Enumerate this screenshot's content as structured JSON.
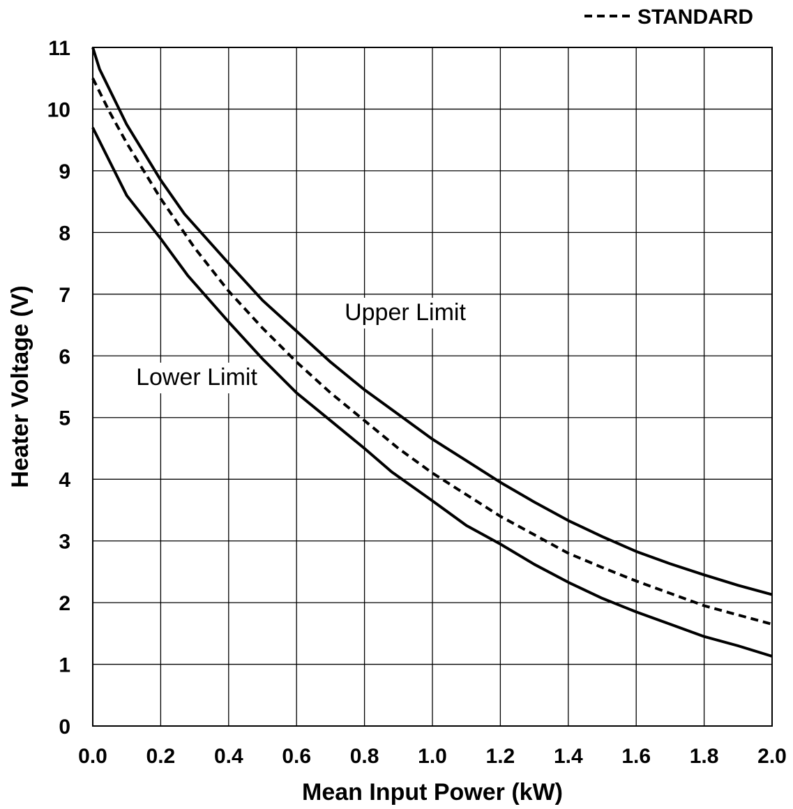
{
  "chart_data": {
    "type": "line",
    "title": "",
    "xlabel": "Mean Input Power (kW)",
    "ylabel": "Heater Voltage (V)",
    "xlim": [
      0,
      2.0
    ],
    "ylim": [
      0,
      11
    ],
    "x_ticks": [
      "0.0",
      "0.2",
      "0.4",
      "0.6",
      "0.8",
      "1.0",
      "1.2",
      "1.4",
      "1.6",
      "1.8",
      "2.0"
    ],
    "y_ticks": [
      "0",
      "1",
      "2",
      "3",
      "4",
      "5",
      "6",
      "7",
      "8",
      "9",
      "10",
      "11"
    ],
    "grid": true,
    "legend": {
      "placement": "top-right",
      "entries": [
        "STANDARD"
      ]
    },
    "annotations": [
      "Upper Limit",
      "Lower Limit"
    ],
    "series": [
      {
        "name": "Upper Limit",
        "style": "solid",
        "x": [
          0.0,
          0.02,
          0.1,
          0.2,
          0.27,
          0.4,
          0.5,
          0.6,
          0.7,
          0.8,
          0.9,
          1.0,
          1.1,
          1.2,
          1.3,
          1.4,
          1.5,
          1.6,
          1.7,
          1.8,
          1.9,
          2.0
        ],
        "y": [
          11.0,
          10.65,
          9.75,
          8.85,
          8.3,
          7.5,
          6.9,
          6.4,
          5.9,
          5.45,
          5.05,
          4.65,
          4.3,
          3.95,
          3.63,
          3.33,
          3.07,
          2.83,
          2.63,
          2.45,
          2.28,
          2.13
        ]
      },
      {
        "name": "STANDARD",
        "style": "dashed",
        "x": [
          0.0,
          0.05,
          0.1,
          0.2,
          0.3,
          0.4,
          0.5,
          0.6,
          0.7,
          0.8,
          0.9,
          1.0,
          1.1,
          1.2,
          1.3,
          1.4,
          1.5,
          1.6,
          1.7,
          1.8,
          1.9,
          2.0
        ],
        "y": [
          10.5,
          9.95,
          9.45,
          8.55,
          7.75,
          7.05,
          6.45,
          5.9,
          5.4,
          4.95,
          4.5,
          4.1,
          3.75,
          3.4,
          3.1,
          2.8,
          2.57,
          2.35,
          2.15,
          1.95,
          1.8,
          1.65
        ]
      },
      {
        "name": "Lower Limit",
        "style": "solid",
        "x": [
          0.0,
          0.05,
          0.1,
          0.2,
          0.28,
          0.4,
          0.5,
          0.6,
          0.7,
          0.8,
          0.88,
          1.0,
          1.1,
          1.2,
          1.3,
          1.4,
          1.5,
          1.6,
          1.7,
          1.8,
          1.9,
          2.0
        ],
        "y": [
          9.7,
          9.15,
          8.6,
          7.9,
          7.3,
          6.55,
          5.95,
          5.4,
          4.95,
          4.5,
          4.12,
          3.65,
          3.25,
          2.95,
          2.62,
          2.33,
          2.07,
          1.85,
          1.65,
          1.45,
          1.3,
          1.13
        ]
      }
    ]
  }
}
